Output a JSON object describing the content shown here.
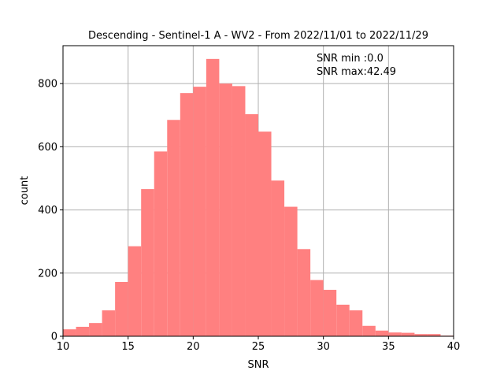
{
  "chart_data": {
    "type": "bar",
    "title": "Descending - Sentinel-1 A - WV2 - From 2022/11/01 to 2022/11/29",
    "xlabel": "SNR",
    "ylabel": "count",
    "xlim": [
      10,
      40
    ],
    "ylim": [
      0,
      920
    ],
    "xticks": [
      10,
      15,
      20,
      25,
      30,
      35,
      40
    ],
    "yticks": [
      0,
      200,
      400,
      600,
      800
    ],
    "grid": true,
    "bar_color": "#ff8080",
    "bin_edges": [
      10.0,
      11.0,
      12.0,
      13.0,
      14.0,
      15.0,
      16.0,
      17.0,
      18.0,
      19.0,
      20.0,
      21.0,
      22.0,
      23.0,
      24.0,
      25.0,
      26.0,
      27.0,
      28.0,
      29.0,
      30.0,
      31.0,
      32.0,
      33.0,
      34.0,
      35.0,
      36.0,
      37.0,
      38.0,
      39.0,
      40.0
    ],
    "values": [
      22,
      30,
      42,
      82,
      172,
      285,
      466,
      585,
      685,
      770,
      790,
      878,
      800,
      792,
      703,
      648,
      493,
      410,
      276,
      178,
      147,
      100,
      82,
      33,
      18,
      12,
      11,
      7,
      7,
      2
    ],
    "annotations": [
      "SNR min :0.0",
      "SNR max:42.49"
    ]
  }
}
